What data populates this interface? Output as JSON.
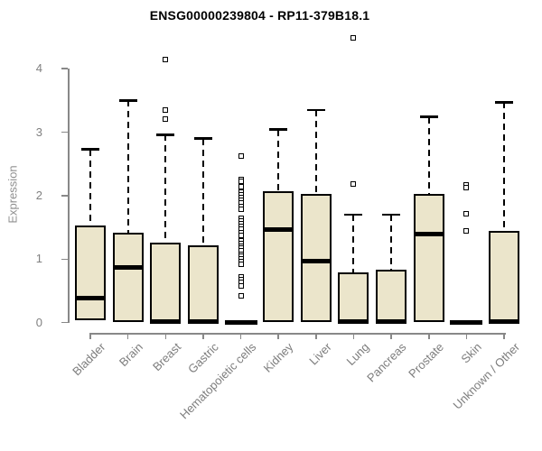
{
  "chart_data": {
    "type": "boxplot",
    "title": "ENSG00000239804 - RP11-379B18.1",
    "xlabel": "",
    "ylabel": "Expression",
    "ylim": [
      0,
      4.6
    ],
    "yticks": [
      0,
      1,
      2,
      3,
      4
    ],
    "grid": false,
    "legend": "none",
    "categories": [
      "Bladder",
      "Brain",
      "Breast",
      "Gastric",
      "Hematopoietic cells",
      "Kidney",
      "Liver",
      "Lung",
      "Pancreas",
      "Prostate",
      "Skin",
      "Unknown / Other"
    ],
    "series": [
      {
        "category": "Bladder",
        "whisker_low": 0.04,
        "q1": 0.04,
        "median": 0.38,
        "q3": 1.53,
        "whisker_high": 2.73,
        "outliers": []
      },
      {
        "category": "Brain",
        "whisker_low": 0.01,
        "q1": 0.01,
        "median": 0.87,
        "q3": 1.42,
        "whisker_high": 3.5,
        "outliers": []
      },
      {
        "category": "Breast",
        "whisker_low": 0.0,
        "q1": 0.0,
        "median": 0.01,
        "q3": 1.26,
        "whisker_high": 2.96,
        "outliers": [
          4.15,
          3.35,
          3.2
        ]
      },
      {
        "category": "Gastric",
        "whisker_low": 0.0,
        "q1": 0.0,
        "median": 0.01,
        "q3": 1.22,
        "whisker_high": 2.9,
        "outliers": []
      },
      {
        "category": "Hematopoietic cells",
        "whisker_low": 0.0,
        "q1": 0.0,
        "median": 0.0,
        "q3": 0.0,
        "whisker_high": 0.0,
        "outliers": [
          2.62,
          2.25,
          2.22,
          2.14,
          2.05,
          2.01,
          1.97,
          1.93,
          1.88,
          1.83,
          1.79,
          1.64,
          1.6,
          1.56,
          1.51,
          1.47,
          1.42,
          1.38,
          1.29,
          1.25,
          1.21,
          1.17,
          1.13,
          1.08,
          1.04,
          1.0,
          0.96,
          0.92,
          0.72,
          0.68,
          0.63,
          0.58,
          0.42
        ]
      },
      {
        "category": "Kidney",
        "whisker_low": 0.01,
        "q1": 0.01,
        "median": 1.46,
        "q3": 2.07,
        "whisker_high": 3.04,
        "outliers": []
      },
      {
        "category": "Liver",
        "whisker_low": 0.01,
        "q1": 0.01,
        "median": 0.97,
        "q3": 2.02,
        "whisker_high": 3.35,
        "outliers": []
      },
      {
        "category": "Lung",
        "whisker_low": 0.0,
        "q1": 0.0,
        "median": 0.01,
        "q3": 0.79,
        "whisker_high": 1.7,
        "outliers": [
          4.48,
          2.18
        ]
      },
      {
        "category": "Pancreas",
        "whisker_low": 0.0,
        "q1": 0.0,
        "median": 0.01,
        "q3": 0.84,
        "whisker_high": 1.7,
        "outliers": []
      },
      {
        "category": "Prostate",
        "whisker_low": 0.01,
        "q1": 0.01,
        "median": 1.4,
        "q3": 2.02,
        "whisker_high": 3.24,
        "outliers": []
      },
      {
        "category": "Skin",
        "whisker_low": 0.0,
        "q1": 0.0,
        "median": 0.0,
        "q3": 0.0,
        "whisker_high": 0.0,
        "outliers": [
          2.17,
          2.12,
          1.71,
          1.45
        ]
      },
      {
        "category": "Unknown / Other",
        "whisker_low": 0.0,
        "q1": 0.0,
        "median": 0.01,
        "q3": 1.45,
        "whisker_high": 3.47,
        "outliers": []
      }
    ],
    "colors": {
      "box_fill": "#ebe5cb",
      "box_border": "#000000",
      "median": "#000000",
      "whisker": "#000000",
      "axis": "#888888",
      "tick_label": "#808080",
      "title": "#000000"
    }
  }
}
